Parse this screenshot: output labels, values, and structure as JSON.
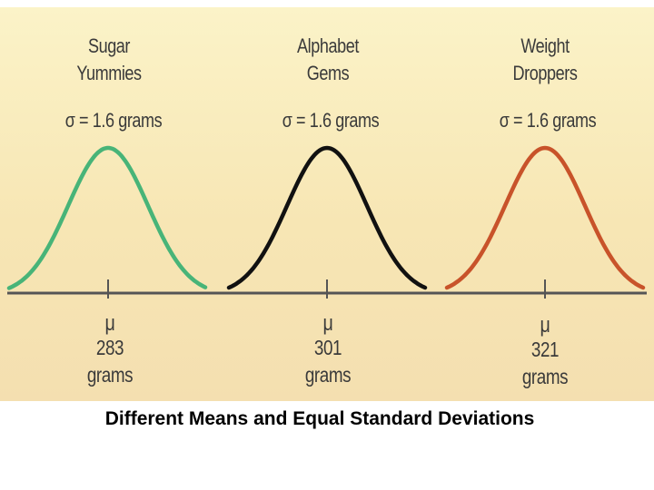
{
  "chart_data": {
    "type": "line",
    "title": "Different Means and Equal Standard Deviations",
    "xlabel": "",
    "ylabel": "",
    "series": [
      {
        "name": "Sugar Yummies",
        "mean_grams": 283,
        "sigma_grams": 1.6,
        "color": "#48b478"
      },
      {
        "name": "Alphabet Gems",
        "mean_grams": 301,
        "sigma_grams": 1.6,
        "color": "#111111"
      },
      {
        "name": "Weight Droppers",
        "mean_grams": 321,
        "sigma_grams": 1.6,
        "color": "#c8532a"
      }
    ]
  },
  "cereals": [
    {
      "name": "Sugar\nYummies",
      "sigma_text": "σ = 1.6 grams",
      "mu_symbol": "μ",
      "mean": "283",
      "unit": "grams"
    },
    {
      "name": "Alphabet\nGems",
      "sigma_text": "σ = 1.6 grams",
      "mu_symbol": "μ",
      "mean": "301",
      "unit": "grams"
    },
    {
      "name": "Weight\nDroppers",
      "sigma_text": "σ = 1.6 grams",
      "mu_symbol": "μ",
      "mean": "321",
      "unit": "grams"
    }
  ],
  "caption": "Different Means and Equal Standard Deviations",
  "colors": {
    "axis": "#555555",
    "background": "#f7e6b4"
  }
}
